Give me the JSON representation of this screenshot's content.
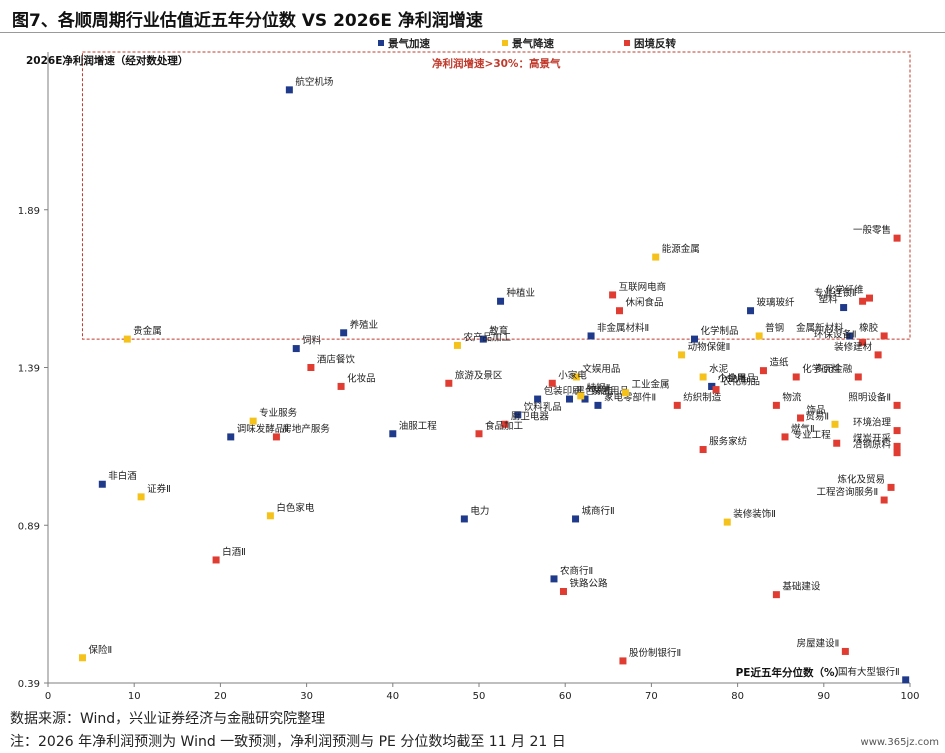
{
  "title": "图7、各顺周期行业估值近五年分位数  VS 2026E 净利润增速",
  "source_note": "数据来源：Wind，兴业证券经济与金融研究院整理",
  "footnote": "注：2026 年净利润预测为 Wind 一致预测，净利润预测与 PE 分位数均截至 11 月 21 日",
  "watermark": "www.365jz.com",
  "colors": {
    "景气加速": "#1f3a8a",
    "景气降速": "#f5c21b",
    "困境反转": "#e03c31",
    "box": "#c0392b"
  },
  "chart_data": {
    "type": "scatter",
    "xlabel": "PE近五年分位数（%）",
    "ylabel": "2026E净利润增速（经对数处理）",
    "xlim": [
      0,
      100
    ],
    "ylim": [
      0.39,
      2.39
    ],
    "xticks": [
      0,
      10,
      20,
      30,
      40,
      50,
      60,
      70,
      80,
      90,
      100
    ],
    "yticks": [
      0.39,
      0.89,
      1.39,
      1.89
    ],
    "grid": false,
    "legend_position": "top-center",
    "annotation": {
      "label": "净利润增速>30%：高景气",
      "x_range": [
        4,
        100
      ],
      "y_range": [
        1.48,
        2.39
      ]
    },
    "series": [
      {
        "name": "景气加速",
        "color": "#1f3a8a",
        "points": [
          {
            "label": "航空机场",
            "x": 28.0,
            "y": 2.27
          },
          {
            "label": "种植业",
            "x": 52.5,
            "y": 1.6
          },
          {
            "label": "玻璃玻纤",
            "x": 81.5,
            "y": 1.57
          },
          {
            "label": "塑料",
            "x": 92.3,
            "y": 1.58
          },
          {
            "label": "金属新材料",
            "x": 93.0,
            "y": 1.49
          },
          {
            "label": "养殖业",
            "x": 34.3,
            "y": 1.5
          },
          {
            "label": "教育",
            "x": 50.5,
            "y": 1.48
          },
          {
            "label": "非金属材料Ⅱ",
            "x": 63.0,
            "y": 1.49
          },
          {
            "label": "化学制品",
            "x": 75.0,
            "y": 1.48
          },
          {
            "label": "饲料",
            "x": 28.8,
            "y": 1.45
          },
          {
            "label": "小金属",
            "x": 77.0,
            "y": 1.33
          },
          {
            "label": "个护用品",
            "x": 77.0,
            "y": 1.33
          },
          {
            "label": "黑色家电",
            "x": 60.5,
            "y": 1.29
          },
          {
            "label": "家居用品",
            "x": 62.3,
            "y": 1.29
          },
          {
            "label": "包装印刷",
            "x": 56.8,
            "y": 1.29
          },
          {
            "label": "家电零部件Ⅱ",
            "x": 63.8,
            "y": 1.27
          },
          {
            "label": "饮料乳品",
            "x": 54.5,
            "y": 1.24
          },
          {
            "label": "调味发酵品Ⅱ",
            "x": 21.2,
            "y": 1.17
          },
          {
            "label": "油服工程",
            "x": 40.0,
            "y": 1.18
          },
          {
            "label": "非白酒",
            "x": 6.3,
            "y": 1.02
          },
          {
            "label": "电力",
            "x": 48.3,
            "y": 0.91
          },
          {
            "label": "城商行Ⅱ",
            "x": 61.2,
            "y": 0.91
          },
          {
            "label": "农商行Ⅱ",
            "x": 58.7,
            "y": 0.72
          },
          {
            "label": "国有大型银行Ⅱ",
            "x": 99.5,
            "y": 0.4
          }
        ]
      },
      {
        "name": "景气降速",
        "color": "#f5c21b",
        "points": [
          {
            "label": "能源金属",
            "x": 70.5,
            "y": 1.74
          },
          {
            "label": "普钢",
            "x": 82.5,
            "y": 1.49
          },
          {
            "label": "贵金属",
            "x": 9.2,
            "y": 1.48
          },
          {
            "label": "农产品加工",
            "x": 47.5,
            "y": 1.46
          },
          {
            "label": "动物保健Ⅱ",
            "x": 73.5,
            "y": 1.43
          },
          {
            "label": "文娱用品",
            "x": 61.3,
            "y": 1.36
          },
          {
            "label": "水泥",
            "x": 76.0,
            "y": 1.36
          },
          {
            "label": "工业金属",
            "x": 67.0,
            "y": 1.31
          },
          {
            "label": "特钢Ⅱ",
            "x": 61.8,
            "y": 1.3
          },
          {
            "label": "专业服务",
            "x": 23.8,
            "y": 1.22
          },
          {
            "label": "贸易Ⅱ",
            "x": 91.3,
            "y": 1.21
          },
          {
            "label": "证券Ⅱ",
            "x": 10.8,
            "y": 0.98
          },
          {
            "label": "白色家电",
            "x": 25.8,
            "y": 0.92
          },
          {
            "label": "装修装饰Ⅱ",
            "x": 78.8,
            "y": 0.9
          },
          {
            "label": "保险Ⅱ",
            "x": 4.0,
            "y": 0.47
          }
        ]
      },
      {
        "name": "困境反转",
        "color": "#e03c31",
        "points": [
          {
            "label": "一般零售",
            "x": 98.5,
            "y": 1.8
          },
          {
            "label": "互联网电商",
            "x": 65.5,
            "y": 1.62
          },
          {
            "label": "化学纤维",
            "x": 95.3,
            "y": 1.61
          },
          {
            "label": "专业连锁Ⅱ",
            "x": 94.5,
            "y": 1.6
          },
          {
            "label": "休闲食品",
            "x": 66.3,
            "y": 1.57
          },
          {
            "label": "橡胶",
            "x": 97.0,
            "y": 1.49
          },
          {
            "label": "环保设备Ⅱ",
            "x": 94.5,
            "y": 1.47
          },
          {
            "label": "装修建材",
            "x": 96.3,
            "y": 1.43
          },
          {
            "label": "酒店餐饮",
            "x": 30.5,
            "y": 1.39
          },
          {
            "label": "造纸",
            "x": 83.0,
            "y": 1.38
          },
          {
            "label": "化学原料",
            "x": 86.8,
            "y": 1.36
          },
          {
            "label": "多元金融",
            "x": 94.0,
            "y": 1.36
          },
          {
            "label": "化妆品",
            "x": 34.0,
            "y": 1.33
          },
          {
            "label": "旅游及景区",
            "x": 46.5,
            "y": 1.34
          },
          {
            "label": "小家电",
            "x": 58.5,
            "y": 1.34
          },
          {
            "label": "纺织制造",
            "x": 73.0,
            "y": 1.27
          },
          {
            "label": "照明设备Ⅱ",
            "x": 98.5,
            "y": 1.27
          },
          {
            "label": "农化制品",
            "x": 77.5,
            "y": 1.32
          },
          {
            "label": "物流",
            "x": 84.5,
            "y": 1.27
          },
          {
            "label": "饰品",
            "x": 87.3,
            "y": 1.23
          },
          {
            "label": "厨卫电器",
            "x": 53.0,
            "y": 1.21
          },
          {
            "label": "食品加工",
            "x": 50.0,
            "y": 1.18
          },
          {
            "label": "房地产服务",
            "x": 26.5,
            "y": 1.17
          },
          {
            "label": "燃气Ⅱ",
            "x": 85.5,
            "y": 1.17
          },
          {
            "label": "专业工程",
            "x": 91.5,
            "y": 1.15
          },
          {
            "label": "环境治理",
            "x": 98.5,
            "y": 1.19
          },
          {
            "label": "煤炭开采",
            "x": 98.5,
            "y": 1.14
          },
          {
            "label": "冶钢原料",
            "x": 98.5,
            "y": 1.12
          },
          {
            "label": "炼化及贸易",
            "x": 97.8,
            "y": 1.01
          },
          {
            "label": "工程咨询服务Ⅱ",
            "x": 97.0,
            "y": 0.97
          },
          {
            "label": "服务家纺",
            "x": 76.0,
            "y": 1.13
          },
          {
            "label": "白酒Ⅱ",
            "x": 19.5,
            "y": 0.78
          },
          {
            "label": "铁路公路",
            "x": 59.8,
            "y": 0.68
          },
          {
            "label": "基础建设",
            "x": 84.5,
            "y": 0.67
          },
          {
            "label": "股份制银行Ⅱ",
            "x": 66.7,
            "y": 0.46
          },
          {
            "label": "房屋建设Ⅱ",
            "x": 92.5,
            "y": 0.49
          }
        ]
      }
    ]
  }
}
